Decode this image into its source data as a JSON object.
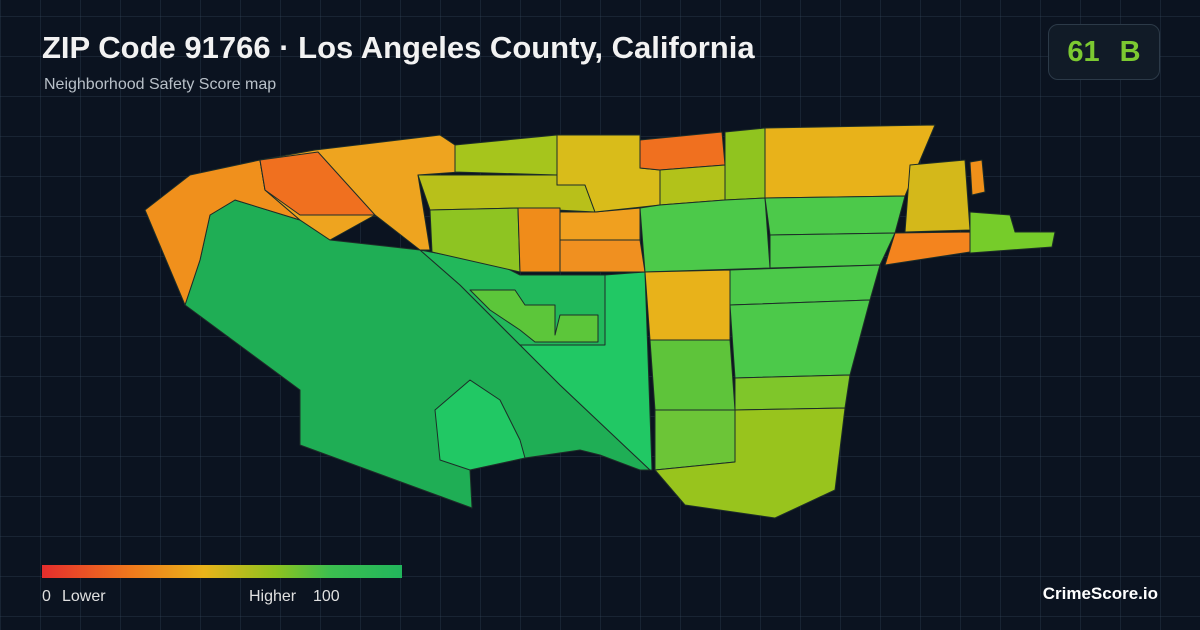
{
  "header": {
    "title": "ZIP Code 91766 · Los Angeles County, California",
    "subtitle": "Neighborhood Safety Score map"
  },
  "badge": {
    "score": 61,
    "grade": "B"
  },
  "legend": {
    "min": 0,
    "min_label": "Lower",
    "max_label": "Higher",
    "max": 100
  },
  "brand": "CrimeScore.io"
}
